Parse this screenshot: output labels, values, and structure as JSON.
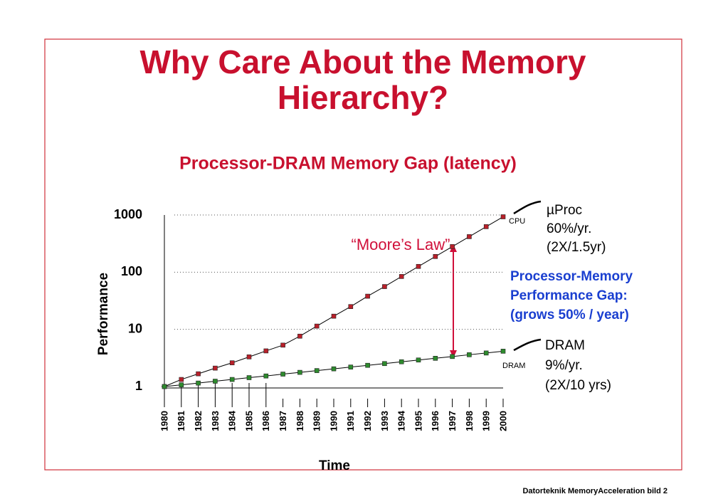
{
  "chart_data": {
    "type": "line",
    "title": "Why Care About the Memory Hierarchy?",
    "subtitle": "Processor-DRAM Memory Gap (latency)",
    "y_label": "Performance",
    "x_label": "Time",
    "categories": [
      "1980",
      "1981",
      "1982",
      "1983",
      "1984",
      "1985",
      "1986",
      "1987",
      "1988",
      "1989",
      "1990",
      "1991",
      "1992",
      "1993",
      "1994",
      "1995",
      "1996",
      "1997",
      "1998",
      "1999",
      "2000"
    ],
    "series": [
      {
        "name": "CPU",
        "color": "#b8202a",
        "values": [
          1,
          1.33,
          1.67,
          2.1,
          2.6,
          3.3,
          4.2,
          5.3,
          7.6,
          11.4,
          17,
          25,
          38,
          56,
          84,
          126,
          188,
          280,
          418,
          625,
          930
        ]
      },
      {
        "name": "DRAM",
        "color": "#2e8b2e",
        "values": [
          1,
          1.07,
          1.15,
          1.24,
          1.33,
          1.43,
          1.53,
          1.65,
          1.77,
          1.9,
          2.04,
          2.19,
          2.35,
          2.52,
          2.71,
          2.91,
          3.12,
          3.35,
          3.6,
          3.86,
          4.15
        ]
      }
    ],
    "ylim": [
      1,
      1000
    ],
    "yticks": [
      1,
      10,
      100,
      1000
    ],
    "log_scale": true,
    "grid": true,
    "annotations": {
      "cpu_note": [
        "µProc",
        "60%/yr.",
        "(2X/1.5yr)"
      ],
      "dram_note": [
        "DRAM",
        "9%/yr.",
        "(2X/10 yrs)"
      ],
      "moore": "“Moore’s Law”",
      "gap": [
        "Processor-Memory",
        "Performance Gap:",
        "(grows 50% / year)"
      ]
    }
  },
  "footer": "Datorteknik MemoryAcceleration bild 2"
}
